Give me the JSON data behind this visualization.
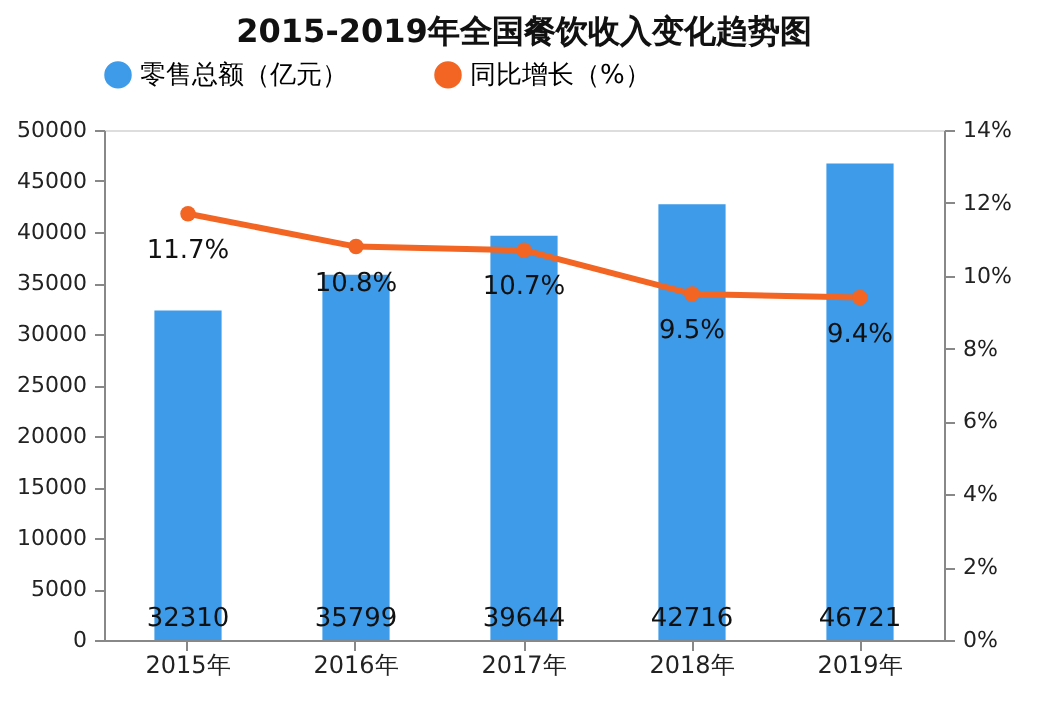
{
  "chart_data": {
    "type": "bar",
    "title": "2015-2019年全国餐饮收入变化趋势图",
    "categories": [
      "2015年",
      "2016年",
      "2017年",
      "2018年",
      "2019年"
    ],
    "series": [
      {
        "name": "零售总额（亿元）",
        "color": "#3d9be9",
        "values": [
          32310,
          35799,
          39644,
          42716,
          46721
        ],
        "value_labels": [
          "32310",
          "35799",
          "39644",
          "42716",
          "46721"
        ]
      },
      {
        "name": "同比增长（%）",
        "type": "line",
        "axis": "y2",
        "color": "#f26522",
        "marker": "circle",
        "values": [
          11.7,
          10.8,
          10.7,
          9.5,
          9.4
        ],
        "value_labels": [
          "11.7%",
          "10.8%",
          "10.7%",
          "9.5%",
          "9.4%"
        ]
      }
    ],
    "ylim": [
      0,
      50000
    ],
    "yticks": [
      0,
      5000,
      10000,
      15000,
      20000,
      25000,
      30000,
      35000,
      40000,
      45000,
      50000
    ],
    "y2lim": [
      0,
      14
    ],
    "y2ticks": [
      {
        "value": 0,
        "label": "0%"
      },
      {
        "value": 2,
        "label": "2%"
      },
      {
        "value": 4,
        "label": "4%"
      },
      {
        "value": 6,
        "label": "6%"
      },
      {
        "value": 8,
        "label": "8%"
      },
      {
        "value": 10,
        "label": "10%"
      },
      {
        "value": 12,
        "label": "12%"
      },
      {
        "value": 14,
        "label": "14%"
      }
    ],
    "grid": false,
    "legend": "top"
  }
}
